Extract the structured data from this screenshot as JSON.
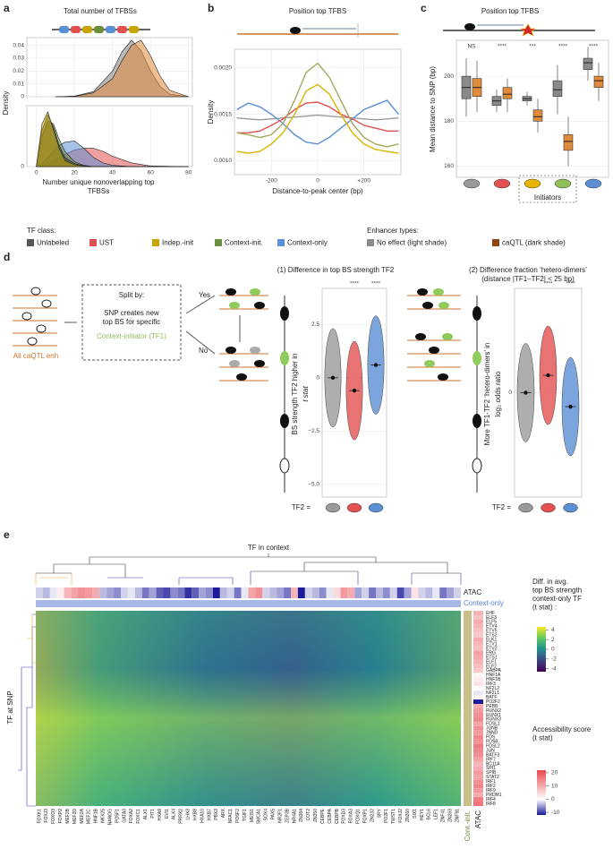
{
  "panel_a": {
    "label": "a",
    "title": "Total number of TFBSs",
    "ylabel": "Density",
    "xlabel": [
      "Number unique nonoverlapping top",
      "TFBSs"
    ],
    "xlim": [
      -5,
      82
    ],
    "xticks": [
      0,
      20,
      40,
      60,
      80
    ],
    "top": {
      "type": "area",
      "ylim": [
        0,
        0.046
      ],
      "yticks": [
        0,
        0.01,
        0.02,
        0.03,
        0.04
      ],
      "x": [
        10,
        20,
        30,
        40,
        45,
        50,
        55,
        60,
        65,
        70,
        80
      ],
      "series": [
        {
          "color": "#7f7f7f",
          "values": [
            0,
            0.0005,
            0.004,
            0.02,
            0.035,
            0.044,
            0.036,
            0.02,
            0.008,
            0.002,
            0
          ]
        },
        {
          "color": "#e08a3c",
          "values": [
            0,
            0.0003,
            0.003,
            0.014,
            0.028,
            0.04,
            0.044,
            0.032,
            0.016,
            0.005,
            0
          ]
        }
      ]
    },
    "bottom": {
      "type": "area",
      "ylim": [
        0,
        0.1
      ],
      "yticks": [
        0
      ],
      "x": [
        0,
        3,
        6,
        9,
        12,
        15,
        20,
        25,
        30,
        35,
        40,
        50,
        60,
        80
      ],
      "series": [
        {
          "color": "#e2504f",
          "values": [
            0,
            0.002,
            0.006,
            0.01,
            0.015,
            0.02,
            0.027,
            0.03,
            0.03,
            0.025,
            0.017,
            0.006,
            0.001,
            0
          ]
        },
        {
          "color": "#5b8fd4",
          "values": [
            0,
            0.005,
            0.015,
            0.025,
            0.035,
            0.04,
            0.042,
            0.03,
            0.015,
            0.006,
            0.002,
            0,
            0,
            0
          ]
        },
        {
          "color": "#6b8f3a",
          "values": [
            0,
            0.05,
            0.075,
            0.07,
            0.045,
            0.025,
            0.008,
            0.002,
            0,
            0,
            0,
            0,
            0,
            0
          ]
        },
        {
          "color": "#3a3a3a",
          "values": [
            0,
            0.06,
            0.085,
            0.065,
            0.035,
            0.015,
            0.005,
            0.001,
            0,
            0,
            0,
            0,
            0,
            0
          ]
        },
        {
          "color": "#c9a400",
          "values": [
            0,
            0.07,
            0.09,
            0.06,
            0.03,
            0.01,
            0.003,
            0.001,
            0,
            0,
            0,
            0,
            0,
            0
          ]
        }
      ]
    }
  },
  "panel_b": {
    "label": "b",
    "type": "line",
    "title": "Position top TFBS",
    "ylabel": "Density",
    "xlabel": "Distance-to-peak center (bp)",
    "xlim": [
      -360,
      360
    ],
    "xticks": [
      -200,
      0,
      {
        "value": 200,
        "label": "+200"
      }
    ],
    "ylim": [
      0.00085,
      0.0022
    ],
    "yticks": [
      {
        "value": 0.001,
        "label": "0.0010"
      },
      {
        "value": 0.0015,
        "label": "0.0015"
      },
      {
        "value": 0.002,
        "label": "0.0020"
      }
    ],
    "x": [
      -350,
      -300,
      -250,
      -200,
      -150,
      -100,
      -50,
      0,
      50,
      100,
      150,
      200,
      250,
      300,
      350
    ],
    "series": [
      {
        "color": "#9a9a9a",
        "values": [
          0.00146,
          0.00145,
          0.00144,
          0.00145,
          0.00146,
          0.00147,
          0.00148,
          0.00149,
          0.00148,
          0.00147,
          0.00146,
          0.00145,
          0.00144,
          0.00145,
          0.00146
        ]
      },
      {
        "color": "#5b8fd4",
        "values": [
          0.00155,
          0.00162,
          0.00158,
          0.0015,
          0.0014,
          0.00128,
          0.0012,
          0.00118,
          0.00125,
          0.00135,
          0.00145,
          0.00155,
          0.0016,
          0.00165,
          0.0015
        ]
      },
      {
        "color": "#e2504f",
        "values": [
          0.0013,
          0.0013,
          0.00132,
          0.00138,
          0.00145,
          0.00155,
          0.00162,
          0.00163,
          0.00158,
          0.0015,
          0.00145,
          0.00138,
          0.00135,
          0.00132,
          0.00132
        ]
      },
      {
        "color": "#d9b400",
        "values": [
          0.0011,
          0.00108,
          0.0011,
          0.00118,
          0.0013,
          0.0015,
          0.00175,
          0.00182,
          0.00172,
          0.0015,
          0.0013,
          0.00118,
          0.00112,
          0.0011,
          0.00108
        ]
      },
      {
        "color": "#a4a75a",
        "values": [
          0.0013,
          0.00128,
          0.00125,
          0.00128,
          0.0014,
          0.00165,
          0.00195,
          0.00205,
          0.0019,
          0.00165,
          0.0014,
          0.00125,
          0.00118,
          0.00115,
          0.00118
        ]
      }
    ]
  },
  "panel_c": {
    "label": "c",
    "type": "box",
    "title": "Position top TFBS",
    "ylabel": "Mean distance to SNP (bp)",
    "ylim": [
      155,
      216
    ],
    "yticks": [
      160,
      180,
      200
    ],
    "significance": [
      "NS",
      "****",
      "***",
      "****",
      "****"
    ],
    "annotation": "Initiators",
    "class_colors": [
      "#9a9a9a",
      "#e2504f",
      "#e8b400",
      "#8fbf5a",
      "#5b8fd4"
    ],
    "series": [
      {
        "color": "#8a8a8a",
        "boxes": [
          [
            182,
            190,
            195,
            200,
            208
          ],
          [
            184,
            187,
            189,
            191,
            194
          ],
          [
            187,
            189,
            190,
            191,
            193
          ],
          [
            183,
            191,
            194,
            198,
            205
          ],
          [
            198,
            203,
            206,
            208,
            213
          ]
        ]
      },
      {
        "color": "#e08a3c",
        "boxes": [
          [
            184,
            191,
            195,
            199,
            207
          ],
          [
            184,
            190,
            192,
            195,
            199
          ],
          [
            175,
            180,
            182,
            185,
            190
          ],
          [
            160,
            167,
            171,
            174,
            182
          ],
          [
            189,
            195,
            198,
            200,
            206
          ]
        ]
      }
    ]
  },
  "legend_tf": {
    "title": "TF class:",
    "items": [
      {
        "name": "Unlabeled",
        "color": "#555555"
      },
      {
        "name": "UST",
        "color": "#e2504f"
      },
      {
        "name": "Indep.-init",
        "color": "#c9a400"
      },
      {
        "name": "Context-init.",
        "color": "#6b8f3a"
      },
      {
        "name": "Context-only",
        "color": "#5b8fd4"
      }
    ]
  },
  "legend_enh": {
    "title": "Enhancer types:",
    "items": [
      {
        "name": "No effect (light shade)",
        "color": "#8a8a8a"
      },
      {
        "name": "caQTL (dark shade)",
        "color": "#8b4513"
      }
    ]
  },
  "panel_d": {
    "label": "d",
    "all": "All caQTL enh",
    "split": [
      "Split by:",
      "SNP creates new",
      "top BS for specific"
    ],
    "split_tf": "Context-initiator (TF1)",
    "yes": "Yes",
    "no": "No",
    "tf2": "TF2 =",
    "v1": {
      "type": "violin",
      "title": "(1) Difference in top BS strength TF2",
      "ylabel": "BS strength TF2 higher in",
      "ylabel2": "t stat",
      "ylim": [
        -5.6,
        4.2
      ],
      "yticks": [
        {
          "value": -5,
          "label": "−5.0"
        },
        {
          "value": -2.5,
          "label": "−2.5"
        },
        0,
        2.5
      ],
      "values": [
        0,
        -0.6,
        0.6
      ],
      "significance": [
        "****",
        "****"
      ]
    },
    "v2": {
      "type": "violin",
      "title": [
        "(2) Difference fraction ‘hetero-dimers’",
        "(distance |TF1–TF2| < 25 bp)"
      ],
      "ylabel": "More TF1-TF2 ‘hetero-dimers’ in",
      "ylabel2": "log₂ odds ratio",
      "ylim": [
        -0.6,
        0.6
      ],
      "yticks": [
        0
      ],
      "values": [
        0,
        0.1,
        -0.08
      ],
      "significance": [
        "****",
        "****"
      ]
    }
  },
  "panel_e": {
    "label": "e",
    "top_label": "TF in context",
    "left_label": "TF at SNP",
    "atac_label": "ATAC",
    "context_label": "Context-only",
    "cont_init": "Cont.-init.",
    "atac_bottom": "ATAC",
    "rows": [
      "EHF",
      "ELF3",
      "ELF5",
      "ETV4",
      "ETV5",
      "ETS2",
      "ELK1",
      "ETV1",
      "ETV2",
      "ERG",
      "ETS1",
      "ELF1",
      "ELF2",
      "GABPA",
      "HNF1A",
      "HNF1B",
      "IRF3",
      "NF2L2",
      "NF2L1",
      "BATF",
      "PO2F2",
      "PEBB",
      "RUNX2",
      "RUNX1",
      "RUNX3",
      "FOSL1",
      "JUNB",
      "JNND",
      "FOS",
      "FOSB",
      "FOSL2",
      "JUN",
      "BATF3",
      "IRF7",
      "BC11A",
      "SPI1",
      "SPIB",
      "STAT2",
      "IRF1",
      "IRF2",
      "IRF9",
      "PRDM1",
      "IRF4",
      "IRF8"
    ],
    "atac_rows": [
      8,
      7,
      9,
      8,
      7,
      6,
      9,
      8,
      7,
      10,
      9,
      8,
      7,
      6,
      1,
      2,
      3,
      0,
      -1,
      1,
      -10,
      9,
      11,
      12,
      13,
      10,
      12,
      11,
      13,
      12,
      14,
      13,
      12,
      10,
      8,
      9,
      11,
      10,
      12,
      13,
      11,
      9,
      14,
      15
    ],
    "columns": [
      "FOXK1",
      "FOXJ3",
      "FOXO3",
      "FOXP2",
      "MEF2B",
      "MEF2D",
      "MEF2A",
      "MEF2C",
      "HNF1B",
      "NKX25",
      "NANOG",
      "PO5F1",
      "GATA3",
      "FOXA2",
      "FOXC1",
      "ALX1",
      "PIT1",
      "HXA9",
      "EVI1",
      "ALX4",
      "PRRX2",
      "LHX3",
      "HXB8",
      "HXA10",
      "HXB7",
      "PBX3",
      "ARX",
      "NFAC1",
      "PO6F2",
      "TGIF1",
      "MEIS1",
      "SMCA1",
      "SOX4",
      "PAX5",
      "NR2F1",
      "ZEP3B",
      "NR4A1",
      "ZN384",
      "COT2",
      "ZN350",
      "CEBPE",
      "CEBPA",
      "CEBPB",
      "FOXD3",
      "FOXA3",
      "FOXQ1",
      "FOXP1",
      "ZN232",
      "SRY",
      "PO2F1",
      "TWST1",
      "FOXJ2",
      "ZN260",
      "SIX1",
      "HEY1",
      "BCL6",
      "LEF1",
      "ZNF41",
      "ZN263",
      "ZNF91"
    ],
    "atac_cols": [
      -2,
      -3,
      -1,
      2,
      8,
      10,
      12,
      11,
      9,
      -3,
      -4,
      -5,
      -2,
      -1,
      -3,
      -6,
      -4,
      -7,
      -8,
      -5,
      -6,
      -9,
      -7,
      -4,
      -5,
      -10,
      -3,
      -2,
      -6,
      -1,
      10,
      12,
      -2,
      -3,
      -4,
      -6,
      8,
      -10,
      -2,
      -3,
      -5,
      -1,
      4,
      11,
      9,
      -4,
      -2,
      -6,
      -3,
      -5,
      -2,
      -8,
      -4,
      3,
      -2,
      -3,
      -1,
      -6,
      -4,
      -2
    ],
    "colorbar1": {
      "title": [
        "Diff. in avg.",
        "top BS strength",
        "context-only TF",
        "(t stat) :"
      ],
      "ticks": [
        4,
        2,
        0,
        -2,
        -4
      ],
      "lim": [
        -4.6,
        4.6
      ]
    },
    "colorbar2": {
      "title": [
        "Accessibility score",
        "(t stat)"
      ],
      "ticks": [
        20,
        10,
        0,
        -10
      ],
      "lim": [
        -12,
        22
      ]
    }
  }
}
